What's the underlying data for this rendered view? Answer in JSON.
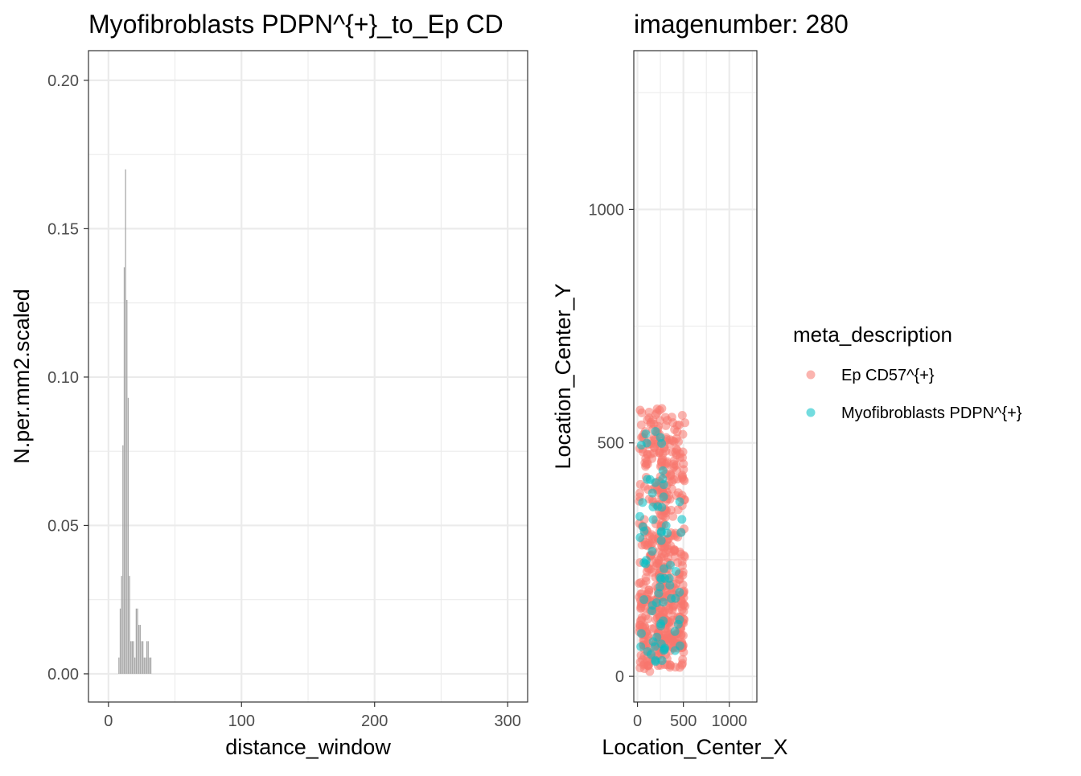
{
  "chart_data": [
    {
      "type": "bar",
      "title": "Myofibroblasts PDPN^{+}_to_Ep CD",
      "xlabel": "distance_window",
      "ylabel": "N.per.mm2.scaled",
      "xlim": [
        -15,
        315
      ],
      "ylim": [
        -0.0095,
        0.21
      ],
      "x_ticks": [
        "0",
        "100",
        "200",
        "300"
      ],
      "x_tick_values": [
        0,
        100,
        200,
        300
      ],
      "y_ticks": [
        "0.00",
        "0.05",
        "0.10",
        "0.15",
        "0.20"
      ],
      "y_tick_values": [
        0,
        0.05,
        0.1,
        0.15,
        0.2
      ],
      "bar_width": 1,
      "bar_color": "#a6a6a6",
      "x": [
        8,
        9,
        10,
        11,
        12,
        13,
        14,
        15,
        16,
        17,
        18,
        19,
        20,
        21,
        22,
        23,
        24,
        25,
        26,
        27,
        28,
        29,
        30,
        31,
        32
      ],
      "values": [
        0.0055,
        0.022,
        0.033,
        0.077,
        0.137,
        0.17,
        0.126,
        0.093,
        0.033,
        0.011,
        0.011,
        0.011,
        0.0055,
        0.022,
        0.022,
        0.0165,
        0.0165,
        0.011,
        0.011,
        0.0055,
        0.0055,
        0.011,
        0.011,
        0.0055,
        0.0055
      ],
      "grid": true
    },
    {
      "type": "scatter",
      "title": "imagenumber:  280",
      "xlabel": "Location_Center_X",
      "ylabel": "Location_Center_Y",
      "xlim": [
        -40,
        1300
      ],
      "ylim": [
        -55,
        1340
      ],
      "x_ticks": [
        "0",
        "500",
        "1000"
      ],
      "x_tick_values": [
        0,
        500,
        1000
      ],
      "y_ticks": [
        "0",
        "500",
        "1000"
      ],
      "y_tick_values": [
        0,
        500,
        1000
      ],
      "legend_title": "meta_description",
      "legend_position": "right",
      "point_alpha": 0.55,
      "series": [
        {
          "name": "Ep CD57^{+}",
          "color": "#F8766D",
          "regions": [
            {
              "x": [
                15,
                330
              ],
              "y": [
                20,
                575
              ]
            },
            {
              "x": [
                230,
                520
              ],
              "y": [
                60,
                560
              ]
            },
            {
              "x": [
                20,
                520
              ],
              "y": [
                10,
                190
              ]
            }
          ]
        },
        {
          "name": "Myofibroblasts PDPN^{+}",
          "color": "#00BFC4",
          "regions": [
            {
              "x": [
                20,
                300
              ],
              "y": [
                30,
                540
              ]
            },
            {
              "x": [
                250,
                500
              ],
              "y": [
                50,
                380
              ]
            }
          ]
        }
      ],
      "grid": true
    }
  ]
}
